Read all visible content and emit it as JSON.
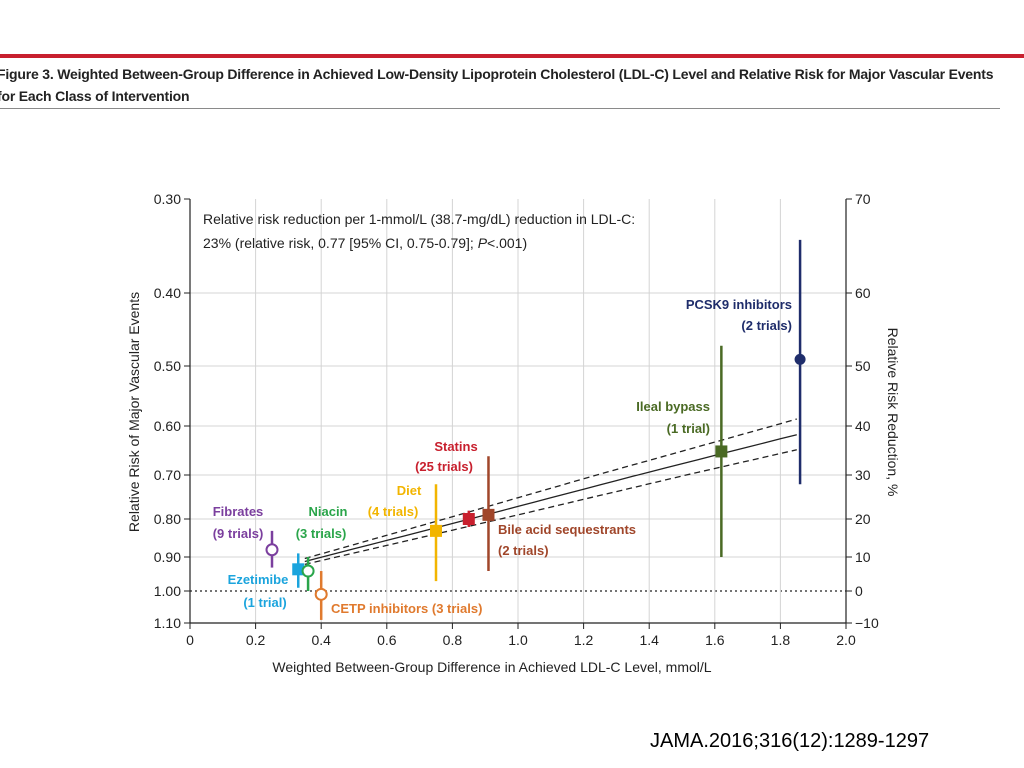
{
  "figure_caption": "Figure 3. Weighted Between-Group Difference in Achieved Low-Density Lipoprotein Cholesterol (LDL-C) Level and Relative Risk for Major Vascular Events for Each Class of Intervention",
  "citation": "JAMA.2016;316(12):1289-1297",
  "chart_data": {
    "type": "scatter",
    "title": "",
    "xlabel": "Weighted Between-Group Difference in Achieved LDL-C Level, mmol/L",
    "ylabel": "Relative Risk of Major Vascular Events",
    "y2label": "Relative Risk Reduction, %",
    "xlim": [
      0,
      2.0
    ],
    "x_ticks": [
      "0",
      "0.2",
      "0.4",
      "0.6",
      "0.8",
      "1.0",
      "1.2",
      "1.4",
      "1.6",
      "1.8",
      "2.0"
    ],
    "y_scale": "log",
    "y_ticks": [
      "0.30",
      "0.40",
      "0.50",
      "0.60",
      "0.70",
      "0.80",
      "0.90",
      "1.00",
      "1.10"
    ],
    "y2_ticks": [
      "70",
      "60",
      "50",
      "40",
      "30",
      "20",
      "10",
      "0",
      "−10"
    ],
    "annotation_line1": "Relative risk reduction per 1-mmol/L (38.7-mg/dL) reduction in LDL-C:",
    "annotation_line2": "23% (relative risk, 0.77 [95% CI, 0.75-0.79]; ",
    "annotation_p": "P",
    "annotation_p_tail": "<.001)",
    "reference_line_y": 1.0,
    "regression": {
      "slope_rr_per_mmol": 0.77,
      "ci_low": 0.75,
      "ci_high": 0.79,
      "x_range": [
        0.35,
        1.85
      ]
    },
    "points": [
      {
        "name": "Fibrates",
        "trials": "(9 trials)",
        "x": 0.25,
        "rr": 0.88,
        "ci": [
          0.83,
          0.93
        ],
        "color": "#7b3f9e",
        "marker": "open-circle"
      },
      {
        "name": "Ezetimibe",
        "trials": "(1 trial)",
        "x": 0.33,
        "rr": 0.935,
        "ci": [
          0.89,
          0.99
        ],
        "color": "#1ba4dd",
        "marker": "square"
      },
      {
        "name": "Niacin",
        "trials": "(3 trials)",
        "x": 0.36,
        "rr": 0.94,
        "ci": [
          0.9,
          1.0
        ],
        "color": "#2aa54a",
        "marker": "open-circle"
      },
      {
        "name": "CETP inhibitors (3 trials)",
        "trials": "",
        "x": 0.4,
        "rr": 1.01,
        "ci": [
          0.94,
          1.09
        ],
        "color": "#e07a2e",
        "marker": "open-circle"
      },
      {
        "name": "Diet",
        "trials": "(4 trials)",
        "x": 0.75,
        "rr": 0.83,
        "ci": [
          0.72,
          0.97
        ],
        "color": "#f2b500",
        "marker": "square"
      },
      {
        "name": "Statins",
        "trials": "(25 trials)",
        "x": 0.85,
        "rr": 0.8,
        "ci": [
          0.78,
          0.82
        ],
        "color": "#c8202e",
        "marker": "square"
      },
      {
        "name": "Bile acid sequestrants",
        "trials": "(2 trials)",
        "x": 0.91,
        "rr": 0.79,
        "ci": [
          0.66,
          0.94
        ],
        "color": "#a0462a",
        "marker": "square"
      },
      {
        "name": "Ileal bypass",
        "trials": "(1 trial)",
        "x": 1.62,
        "rr": 0.65,
        "ci": [
          0.47,
          0.9
        ],
        "color": "#4a6a24",
        "marker": "square"
      },
      {
        "name": "PCSK9 inhibitors",
        "trials": "(2 trials)",
        "x": 1.86,
        "rr": 0.49,
        "ci": [
          0.34,
          0.72
        ],
        "color": "#1f2d6b",
        "marker": "filled-circle"
      }
    ]
  }
}
